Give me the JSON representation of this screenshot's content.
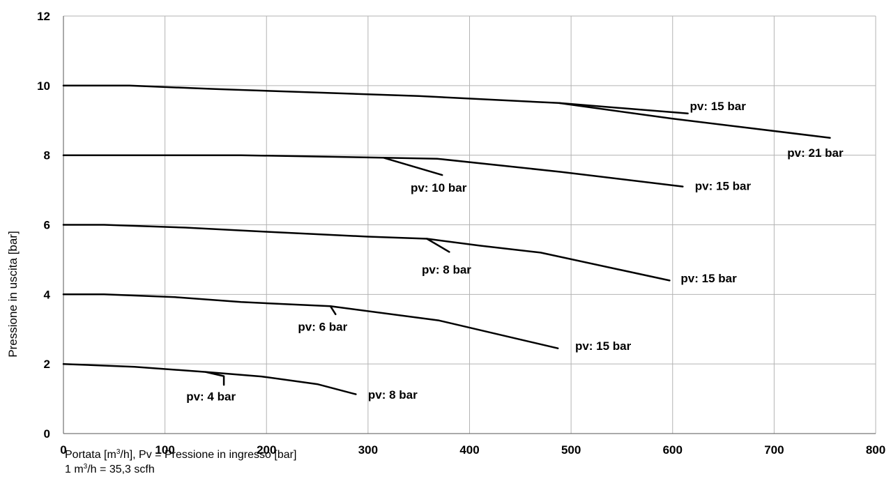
{
  "chart_data": {
    "type": "line",
    "ylabel": "Pressione in uscita [bar]",
    "xlabel_lines": [
      [
        "Portata [m",
        "3",
        "/h], Pv = Pressione in ingresso [bar]"
      ],
      [
        "1 m",
        "3",
        "/h = 35,3 scfh"
      ]
    ],
    "xlim": [
      0,
      800
    ],
    "ylim": [
      0,
      12
    ],
    "x_ticks": [
      0,
      100,
      200,
      300,
      400,
      500,
      600,
      700,
      800
    ],
    "y_ticks": [
      0,
      2,
      4,
      6,
      8,
      10,
      12
    ],
    "grid": true,
    "line_color": "#000000",
    "grid_color": "#b3b3b3",
    "series": [
      {
        "points": [
          [
            0,
            10
          ],
          [
            65,
            10
          ],
          [
            150,
            9.9
          ],
          [
            250,
            9.8
          ],
          [
            350,
            9.7
          ],
          [
            488,
            9.5
          ],
          [
            615,
            9.2
          ]
        ]
      },
      {
        "points": [
          [
            488,
            9.5
          ],
          [
            600,
            9.05
          ],
          [
            755,
            8.5
          ]
        ]
      },
      {
        "points": [
          [
            0,
            8
          ],
          [
            175,
            8
          ],
          [
            315,
            7.93
          ],
          [
            368,
            7.9
          ],
          [
            490,
            7.52
          ],
          [
            610,
            7.1
          ]
        ]
      },
      {
        "points": [
          [
            315,
            7.93
          ],
          [
            373,
            7.43
          ]
        ]
      },
      {
        "points": [
          [
            0,
            6
          ],
          [
            40,
            6
          ],
          [
            120,
            5.92
          ],
          [
            200,
            5.8
          ],
          [
            300,
            5.66
          ],
          [
            358,
            5.6
          ],
          [
            410,
            5.4
          ],
          [
            470,
            5.2
          ],
          [
            597,
            4.4
          ]
        ]
      },
      {
        "points": [
          [
            358,
            5.6
          ],
          [
            380,
            5.22
          ]
        ]
      },
      {
        "points": [
          [
            0,
            4
          ],
          [
            40,
            4
          ],
          [
            110,
            3.92
          ],
          [
            175,
            3.78
          ],
          [
            263,
            3.66
          ],
          [
            370,
            3.25
          ],
          [
            487,
            2.45
          ]
        ]
      },
      {
        "points": [
          [
            263,
            3.66
          ],
          [
            268,
            3.43
          ]
        ]
      },
      {
        "points": [
          [
            0,
            2
          ],
          [
            70,
            1.92
          ],
          [
            140,
            1.77
          ],
          [
            195,
            1.64
          ],
          [
            250,
            1.42
          ],
          [
            288,
            1.13
          ]
        ]
      },
      {
        "points": [
          [
            140,
            1.77
          ],
          [
            158,
            1.65
          ],
          [
            158,
            1.4
          ]
        ]
      }
    ],
    "annotations": [
      {
        "text": "pv: 15 bar",
        "x": 617,
        "y": 9.3
      },
      {
        "text": "pv: 21 bar",
        "x": 713,
        "y": 7.95
      },
      {
        "text": "pv: 10 bar",
        "x": 342,
        "y": 6.95
      },
      {
        "text": "pv: 15 bar",
        "x": 622,
        "y": 7.0
      },
      {
        "text": "pv: 8 bar",
        "x": 353,
        "y": 4.6
      },
      {
        "text": "pv: 15 bar",
        "x": 608,
        "y": 4.35
      },
      {
        "text": "pv: 6 bar",
        "x": 231,
        "y": 2.95
      },
      {
        "text": "pv: 15 bar",
        "x": 504,
        "y": 2.4
      },
      {
        "text": "pv: 4 bar",
        "x": 121,
        "y": 0.95
      },
      {
        "text": "pv: 8 bar",
        "x": 300,
        "y": 1.0
      }
    ]
  }
}
